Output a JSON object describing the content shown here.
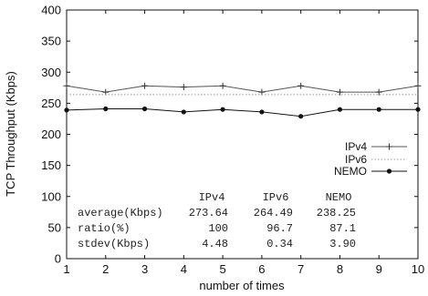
{
  "chart_data": {
    "type": "line",
    "xlabel": "number of times",
    "ylabel": "TCP Throughput (Kbps)",
    "x": [
      1,
      2,
      3,
      4,
      5,
      6,
      7,
      8,
      9,
      10
    ],
    "xlim": [
      1,
      10
    ],
    "ylim": [
      0,
      400
    ],
    "yticks": [
      0,
      50,
      100,
      150,
      200,
      250,
      300,
      350,
      400
    ],
    "grid": false,
    "legend_position": "right",
    "series": [
      {
        "name": "IPv4",
        "style": "solid-plus",
        "color": "#555555",
        "values": [
          278,
          268,
          278,
          276,
          278,
          268,
          278,
          268,
          268,
          278
        ]
      },
      {
        "name": "IPv6",
        "style": "dotted",
        "color": "#999999",
        "values": [
          264,
          264,
          264,
          264,
          264,
          264,
          264,
          264,
          264,
          264
        ]
      },
      {
        "name": "NEMO",
        "style": "solid-dot",
        "color": "#111111",
        "values": [
          239,
          241,
          241,
          236,
          240,
          236,
          229,
          240,
          240,
          240
        ]
      }
    ],
    "stats_table": {
      "columns": [
        "IPv4",
        "IPv6",
        "NEMO"
      ],
      "rows": [
        {
          "label": "average(Kbps)",
          "values": [
            "273.64",
            "264.49",
            "238.25"
          ]
        },
        {
          "label": "ratio(%)",
          "values": [
            "100",
            "96.7",
            "87.1"
          ]
        },
        {
          "label": "stdev(Kbps)",
          "values": [
            "4.48",
            "0.34",
            "3.90"
          ]
        }
      ]
    }
  }
}
